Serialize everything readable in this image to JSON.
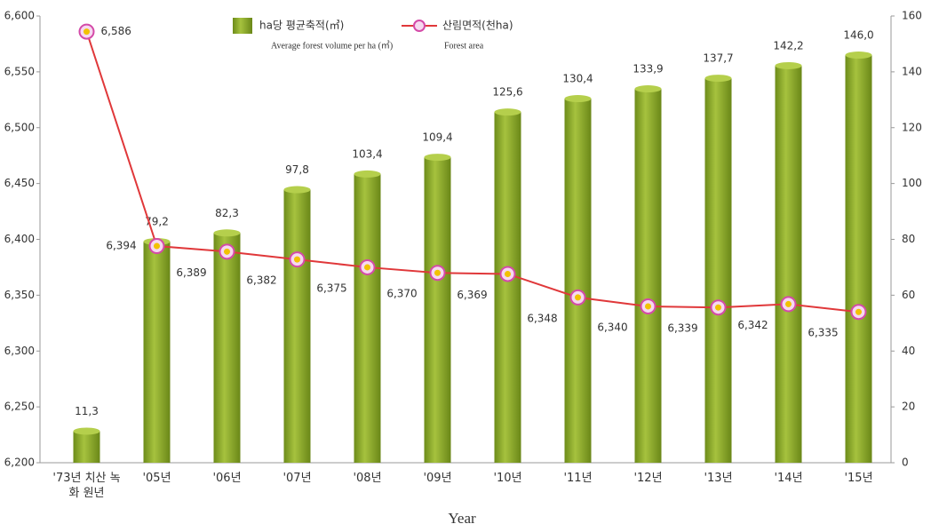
{
  "chart_data": {
    "type": "bar-line",
    "categories": [
      "'73년 치산 녹화 원년",
      "'05년",
      "'06년",
      "'07년",
      "'08년",
      "'09년",
      "'10년",
      "'11년",
      "'12년",
      "'13년",
      "'14년",
      "'15년"
    ],
    "xlabel": "Year",
    "series": [
      {
        "name": "ha당 평균축적(㎥)",
        "note": "Average forest volume per ha (㎥)",
        "type": "bar",
        "axis": "y2",
        "color": "#8aab2c",
        "values": [
          11.3,
          79.2,
          82.3,
          97.8,
          103.4,
          109.4,
          125.6,
          130.4,
          133.9,
          137.7,
          142.2,
          146.0
        ],
        "value_labels": [
          "11,3",
          "79,2",
          "82,3",
          "97,8",
          "103,4",
          "109,4",
          "125,6",
          "130,4",
          "133,9",
          "137,7",
          "142,2",
          "146,0"
        ]
      },
      {
        "name": "산림면적(천ha)",
        "note": "Forest area",
        "type": "line",
        "axis": "y",
        "color": "#e0383a",
        "values": [
          6586,
          6394,
          6389,
          6382,
          6375,
          6370,
          6369,
          6348,
          6340,
          6339,
          6342,
          6335
        ],
        "value_labels": [
          "6,586",
          "6,394",
          "6,389",
          "6,382",
          "6,375",
          "6,370",
          "6,369",
          "6,348",
          "6,340",
          "6,339",
          "6,342",
          "6,335"
        ]
      }
    ],
    "ylim": [
      6200,
      6600
    ],
    "yticks": [
      {
        "value": 6200,
        "label": "6,200"
      },
      {
        "value": 6250,
        "label": "6,250"
      },
      {
        "value": 6300,
        "label": "6,300"
      },
      {
        "value": 6350,
        "label": "6,350"
      },
      {
        "value": 6400,
        "label": "6,400"
      },
      {
        "value": 6450,
        "label": "6,450"
      },
      {
        "value": 6500,
        "label": "6,500"
      },
      {
        "value": 6550,
        "label": "6,550"
      },
      {
        "value": 6600,
        "label": "6,600"
      }
    ],
    "y2lim": [
      0,
      160
    ],
    "y2ticks": [
      0,
      20,
      40,
      60,
      80,
      100,
      120,
      140,
      160
    ]
  }
}
